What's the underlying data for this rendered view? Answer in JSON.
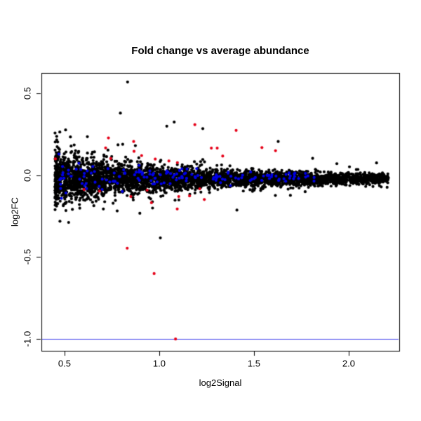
{
  "chart_data": {
    "type": "scatter",
    "title": "Fold change vs average abundance",
    "xlabel": "log2Signal",
    "ylabel": "log2FC",
    "xlim": [
      0.378,
      2.267
    ],
    "ylim": [
      -1.073,
      0.625
    ],
    "xticks": [
      0.5,
      1.0,
      1.5,
      2.0
    ],
    "yticks": [
      -1.0,
      -0.5,
      0.0,
      0.5
    ],
    "tick_decimals": 1,
    "grid": false,
    "legend": "none",
    "background": "#ffffff",
    "frame_color": "#000000",
    "tick_color": "#000000",
    "point_radius": 2.1,
    "hline": {
      "y": -1.0,
      "color": "#4444ee"
    },
    "series": [
      {
        "name": "probes-black",
        "color": "#000000",
        "count": 3800,
        "seed": 7,
        "x_min": 0.45,
        "x_max": 2.21,
        "x_pow": 1.32,
        "y_mean": -0.02,
        "sd_base": 0.013,
        "sd_amp": 0.072,
        "sd_decay": 0.55,
        "outlier_frac": 0.04,
        "outlier_mult": 2.1,
        "y_clamp": 0.45,
        "explicit_points": [
          [
            0.833,
            0.57
          ],
          [
            0.795,
            0.38
          ],
          [
            1.079,
            0.325
          ],
          [
            1.04,
            0.3
          ],
          [
            1.23,
            0.285
          ],
          [
            1.628,
            0.206
          ],
          [
            1.006,
            -0.383
          ],
          [
            0.778,
            -0.218
          ],
          [
            1.41,
            -0.213
          ]
        ]
      },
      {
        "name": "controls-blue",
        "color": "#0000e6",
        "count": 150,
        "seed": 99,
        "x_min": 0.47,
        "x_max": 1.82,
        "x_pow": 1.25,
        "y_mean": -0.012,
        "sd_base": 0.01,
        "sd_amp": 0.05,
        "sd_decay": 0.55,
        "outlier_frac": 0,
        "outlier_mult": 1,
        "y_clamp": 0.16,
        "explicit_points": []
      },
      {
        "name": "flagged-red",
        "color": "#e60017",
        "count": 0,
        "seed": 1,
        "x_min": 0,
        "x_max": 0,
        "x_pow": 1,
        "y_mean": 0,
        "sd_base": 0,
        "sd_amp": 0,
        "sd_decay": 1,
        "outlier_frac": 0,
        "outlier_mult": 1,
        "y_clamp": 1,
        "explicit_points": [
          [
            0.452,
            0.1
          ],
          [
            0.732,
            0.228
          ],
          [
            0.717,
            0.167
          ],
          [
            0.744,
            0.102
          ],
          [
            0.865,
            0.206
          ],
          [
            0.867,
            0.146
          ],
          [
            0.907,
            0.12
          ],
          [
            0.979,
            0.099
          ],
          [
            1.051,
            0.087
          ],
          [
            1.096,
            0.077
          ],
          [
            1.188,
            0.309
          ],
          [
            1.275,
            0.166
          ],
          [
            1.306,
            0.166
          ],
          [
            1.335,
            0.117
          ],
          [
            1.406,
            0.274
          ],
          [
            1.542,
            0.169
          ],
          [
            1.614,
            0.15
          ],
          [
            0.603,
            -0.087
          ],
          [
            0.685,
            -0.097
          ],
          [
            0.85,
            -0.13
          ],
          [
            0.936,
            -0.091
          ],
          [
            0.959,
            -0.168
          ],
          [
            1.095,
            -0.206
          ],
          [
            1.103,
            -0.13
          ],
          [
            1.16,
            -0.126
          ],
          [
            1.214,
            -0.083
          ],
          [
            1.238,
            -0.148
          ],
          [
            0.831,
            -0.446
          ],
          [
            0.973,
            -0.601
          ],
          [
            1.086,
            -1.001
          ]
        ]
      }
    ]
  }
}
